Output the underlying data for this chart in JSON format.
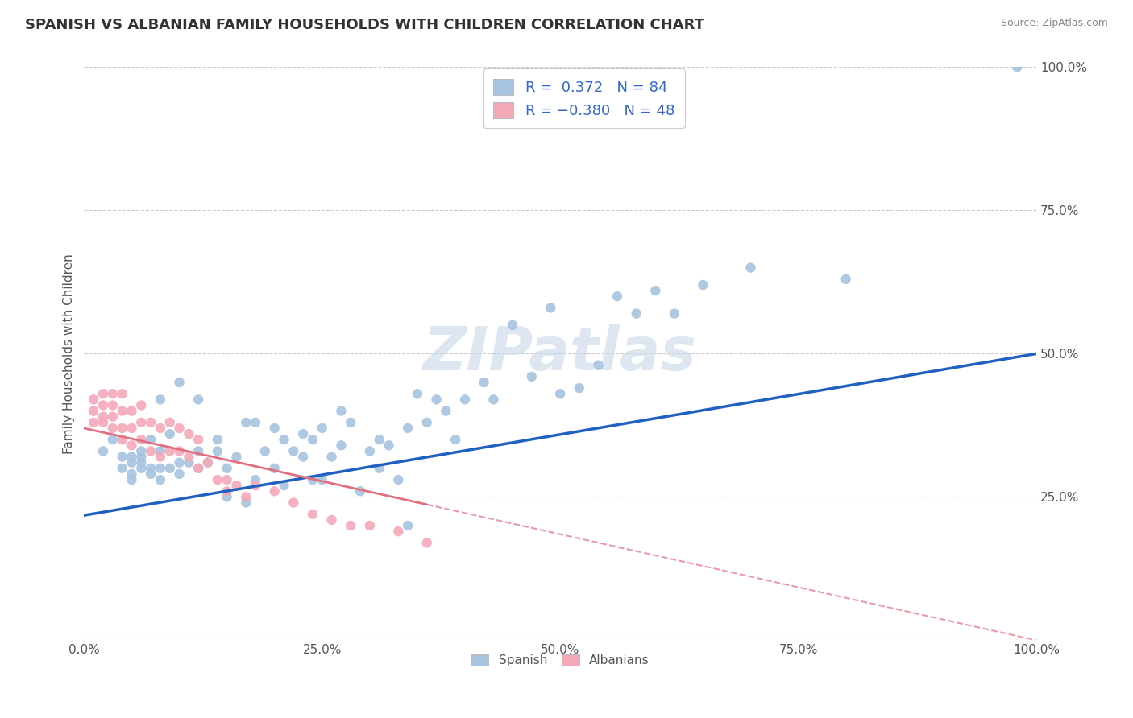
{
  "title": "SPANISH VS ALBANIAN FAMILY HOUSEHOLDS WITH CHILDREN CORRELATION CHART",
  "source": "Source: ZipAtlas.com",
  "ylabel": "Family Households with Children",
  "xlim": [
    0.0,
    1.0
  ],
  "ylim": [
    0.0,
    1.0
  ],
  "xticks": [
    0.0,
    0.25,
    0.5,
    0.75,
    1.0
  ],
  "yticks": [
    0.0,
    0.25,
    0.5,
    0.75,
    1.0
  ],
  "xticklabels": [
    "0.0%",
    "25.0%",
    "50.0%",
    "75.0%",
    "100.0%"
  ],
  "yticklabels": [
    "",
    "25.0%",
    "50.0%",
    "75.0%",
    "100.0%"
  ],
  "watermark": "ZIPatlas",
  "spanish_color": "#a8c4e0",
  "albanian_color": "#f4a9b8",
  "spanish_line_color": "#2060c0",
  "albanian_line_color": "#e07080",
  "title_fontsize": 13,
  "spanish_intercept": 0.218,
  "spanish_slope": 0.282,
  "albanian_intercept": 0.37,
  "albanian_slope": -0.37,
  "spanish_x": [
    0.02,
    0.03,
    0.04,
    0.04,
    0.05,
    0.05,
    0.05,
    0.05,
    0.06,
    0.06,
    0.06,
    0.06,
    0.07,
    0.07,
    0.07,
    0.08,
    0.08,
    0.08,
    0.08,
    0.09,
    0.09,
    0.1,
    0.1,
    0.1,
    0.11,
    0.12,
    0.12,
    0.12,
    0.13,
    0.14,
    0.14,
    0.15,
    0.15,
    0.16,
    0.17,
    0.17,
    0.18,
    0.18,
    0.19,
    0.2,
    0.2,
    0.21,
    0.21,
    0.22,
    0.23,
    0.23,
    0.24,
    0.24,
    0.25,
    0.25,
    0.26,
    0.27,
    0.27,
    0.28,
    0.29,
    0.3,
    0.31,
    0.31,
    0.32,
    0.33,
    0.34,
    0.34,
    0.35,
    0.36,
    0.37,
    0.38,
    0.39,
    0.4,
    0.42,
    0.43,
    0.45,
    0.47,
    0.49,
    0.5,
    0.52,
    0.54,
    0.56,
    0.58,
    0.6,
    0.62,
    0.65,
    0.7,
    0.8,
    0.98
  ],
  "spanish_y": [
    0.33,
    0.35,
    0.3,
    0.32,
    0.28,
    0.29,
    0.31,
    0.32,
    0.3,
    0.31,
    0.32,
    0.33,
    0.29,
    0.3,
    0.35,
    0.28,
    0.3,
    0.33,
    0.42,
    0.3,
    0.36,
    0.29,
    0.31,
    0.45,
    0.31,
    0.3,
    0.33,
    0.42,
    0.31,
    0.33,
    0.35,
    0.25,
    0.3,
    0.32,
    0.24,
    0.38,
    0.28,
    0.38,
    0.33,
    0.3,
    0.37,
    0.27,
    0.35,
    0.33,
    0.32,
    0.36,
    0.28,
    0.35,
    0.28,
    0.37,
    0.32,
    0.34,
    0.4,
    0.38,
    0.26,
    0.33,
    0.3,
    0.35,
    0.34,
    0.28,
    0.2,
    0.37,
    0.43,
    0.38,
    0.42,
    0.4,
    0.35,
    0.42,
    0.45,
    0.42,
    0.55,
    0.46,
    0.58,
    0.43,
    0.44,
    0.48,
    0.6,
    0.57,
    0.61,
    0.57,
    0.62,
    0.65,
    0.63,
    1.0
  ],
  "albanian_x": [
    0.01,
    0.01,
    0.01,
    0.02,
    0.02,
    0.02,
    0.02,
    0.03,
    0.03,
    0.03,
    0.03,
    0.04,
    0.04,
    0.04,
    0.04,
    0.05,
    0.05,
    0.05,
    0.06,
    0.06,
    0.06,
    0.07,
    0.07,
    0.08,
    0.08,
    0.09,
    0.09,
    0.1,
    0.1,
    0.11,
    0.11,
    0.12,
    0.12,
    0.13,
    0.14,
    0.15,
    0.15,
    0.16,
    0.17,
    0.18,
    0.2,
    0.22,
    0.24,
    0.26,
    0.28,
    0.3,
    0.33,
    0.36
  ],
  "albanian_y": [
    0.38,
    0.4,
    0.42,
    0.38,
    0.39,
    0.41,
    0.43,
    0.37,
    0.39,
    0.41,
    0.43,
    0.35,
    0.37,
    0.4,
    0.43,
    0.34,
    0.37,
    0.4,
    0.35,
    0.38,
    0.41,
    0.33,
    0.38,
    0.32,
    0.37,
    0.33,
    0.38,
    0.33,
    0.37,
    0.32,
    0.36,
    0.3,
    0.35,
    0.31,
    0.28,
    0.26,
    0.28,
    0.27,
    0.25,
    0.27,
    0.26,
    0.24,
    0.22,
    0.21,
    0.2,
    0.2,
    0.19,
    0.17
  ]
}
